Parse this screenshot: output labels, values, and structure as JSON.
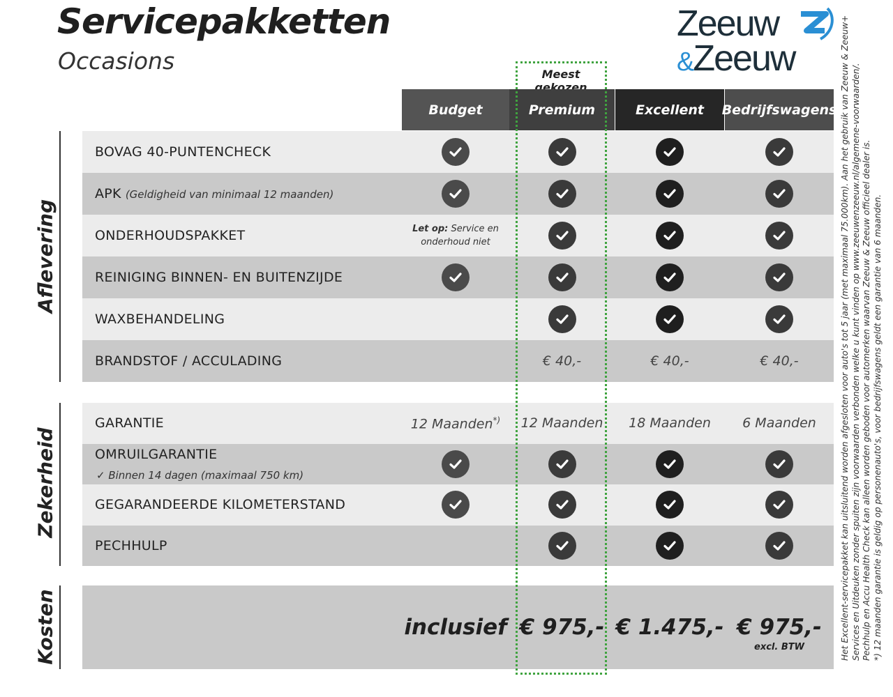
{
  "header": {
    "title": "Servicepakketten",
    "subtitle": "Occasions"
  },
  "logo": {
    "line1": "Zeeuw",
    "amp": "&",
    "line2": "Zeeuw",
    "brand_color": "#2a8fd4",
    "text_color": "#1e2f3a"
  },
  "highlight": {
    "label": "Meest gekozen",
    "color": "#3fa33f"
  },
  "columns": [
    {
      "label": "Budget",
      "color": "#545454",
      "check_color": "#4a4a4a"
    },
    {
      "label": "Premium",
      "color": "#3f3f3f",
      "check_color": "#3a3a3a"
    },
    {
      "label": "Excellent",
      "color": "#262626",
      "check_color": "#1f1f1f"
    },
    {
      "label": "Bedrijfswagens",
      "color": "#4d4d4d",
      "check_color": "#3a3a3a"
    }
  ],
  "sections": [
    {
      "label": "Aflevering",
      "rows": [
        {
          "label": "BOVAG 40-PUNTENCHECK",
          "cells": [
            "check",
            "check",
            "check",
            "check"
          ]
        },
        {
          "label": "APK",
          "note": "(Geldigheid van minimaal 12 maanden)",
          "cells": [
            "check",
            "check",
            "check",
            "check"
          ]
        },
        {
          "label": "ONDERHOUDSPAKKET",
          "cells": [
            {
              "bold": "Let op:",
              "text": "Service en onderhoud niet"
            },
            "check",
            "check",
            "check"
          ]
        },
        {
          "label": "REINIGING BINNEN- EN BUITENZIJDE",
          "cells": [
            "check",
            "check",
            "check",
            "check"
          ]
        },
        {
          "label": "WAXBEHANDELING",
          "cells": [
            "",
            "check",
            "check",
            "check"
          ]
        },
        {
          "label": "BRANDSTOF / ACCULADING",
          "cells": [
            "",
            "€ 40,-",
            "€ 40,-",
            "€ 40,-"
          ]
        }
      ]
    },
    {
      "label": "Zekerheid",
      "rows": [
        {
          "label": "GARANTIE",
          "cells": [
            {
              "text": "12 Maanden",
              "sup": "*)"
            },
            "12 Maanden",
            "18 Maanden",
            "6 Maanden"
          ]
        },
        {
          "label": "OMRUILGARANTIE",
          "sub": "✓  Binnen 14 dagen (maximaal 750 km)",
          "cells": [
            "check",
            "check",
            "check",
            "check"
          ]
        },
        {
          "label": "GEGARANDEERDE KILOMETERSTAND",
          "cells": [
            "check",
            "check",
            "check",
            "check"
          ]
        },
        {
          "label": "PECHHULP",
          "cells": [
            "",
            "check",
            "check",
            "check"
          ]
        }
      ]
    },
    {
      "label": "Kosten",
      "rows": [
        {
          "label": "",
          "cells": [
            "inclusief",
            "€ 975,-",
            "€ 1.475,-",
            {
              "text": "€ 975,-",
              "excl": "excl. BTW"
            }
          ]
        }
      ]
    }
  ],
  "row_colors": [
    "#ececec",
    "#c9c9c9"
  ],
  "footnotes": [
    "Het Excellent-servicepakket kan uitsluitend worden afgesloten voor auto's tot 5 jaar (met maximaal 75.000km). Aan het gebruik van Zeeuw & Zeeuw+",
    "Services en Uitdeuken zonder spuiten zijn voorwaarden verbonden welke u kunt vinden op www.zeeuwenzeeuw.nl/algemene-voorwaarden/.",
    "Pechhulp en Accu Health Check kan alleen worden geboden voor automerken waarvan Zeeuw & Zeeuw officieel dealer is.",
    "*) 12 maanden garantie is geldig op personenauto's, voor bedrijfswagens geldt een garantie van 6 maanden."
  ]
}
